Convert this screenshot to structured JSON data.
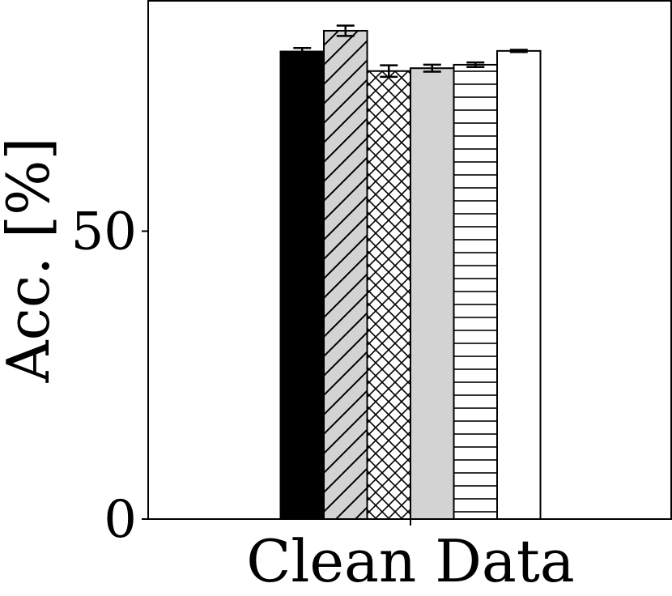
{
  "chart_data": {
    "type": "bar",
    "title": "",
    "xlabel": "",
    "ylabel": "Acc. [%]",
    "categories": [
      "Clean Data"
    ],
    "ylim": [
      0,
      90
    ],
    "yticks": [
      0,
      50
    ],
    "grid": false,
    "legend": "none",
    "series": [
      {
        "values": [
          81.2
        ],
        "error": [
          0.6
        ],
        "fill": "#000000",
        "pattern": "solid"
      },
      {
        "values": [
          84.8
        ],
        "error": [
          0.9
        ],
        "fill": "#d3d3d3",
        "pattern": "diagonal"
      },
      {
        "values": [
          77.8
        ],
        "error": [
          1.0
        ],
        "fill": "#ffffff",
        "pattern": "crosshatch"
      },
      {
        "values": [
          78.3
        ],
        "error": [
          0.6
        ],
        "fill": "#d3d3d3",
        "pattern": "solid"
      },
      {
        "values": [
          78.9
        ],
        "error": [
          0.4
        ],
        "fill": "#ffffff",
        "pattern": "horizontal"
      },
      {
        "values": [
          81.3
        ],
        "error": [
          0.2
        ],
        "fill": "#ffffff",
        "pattern": "solid"
      }
    ]
  }
}
